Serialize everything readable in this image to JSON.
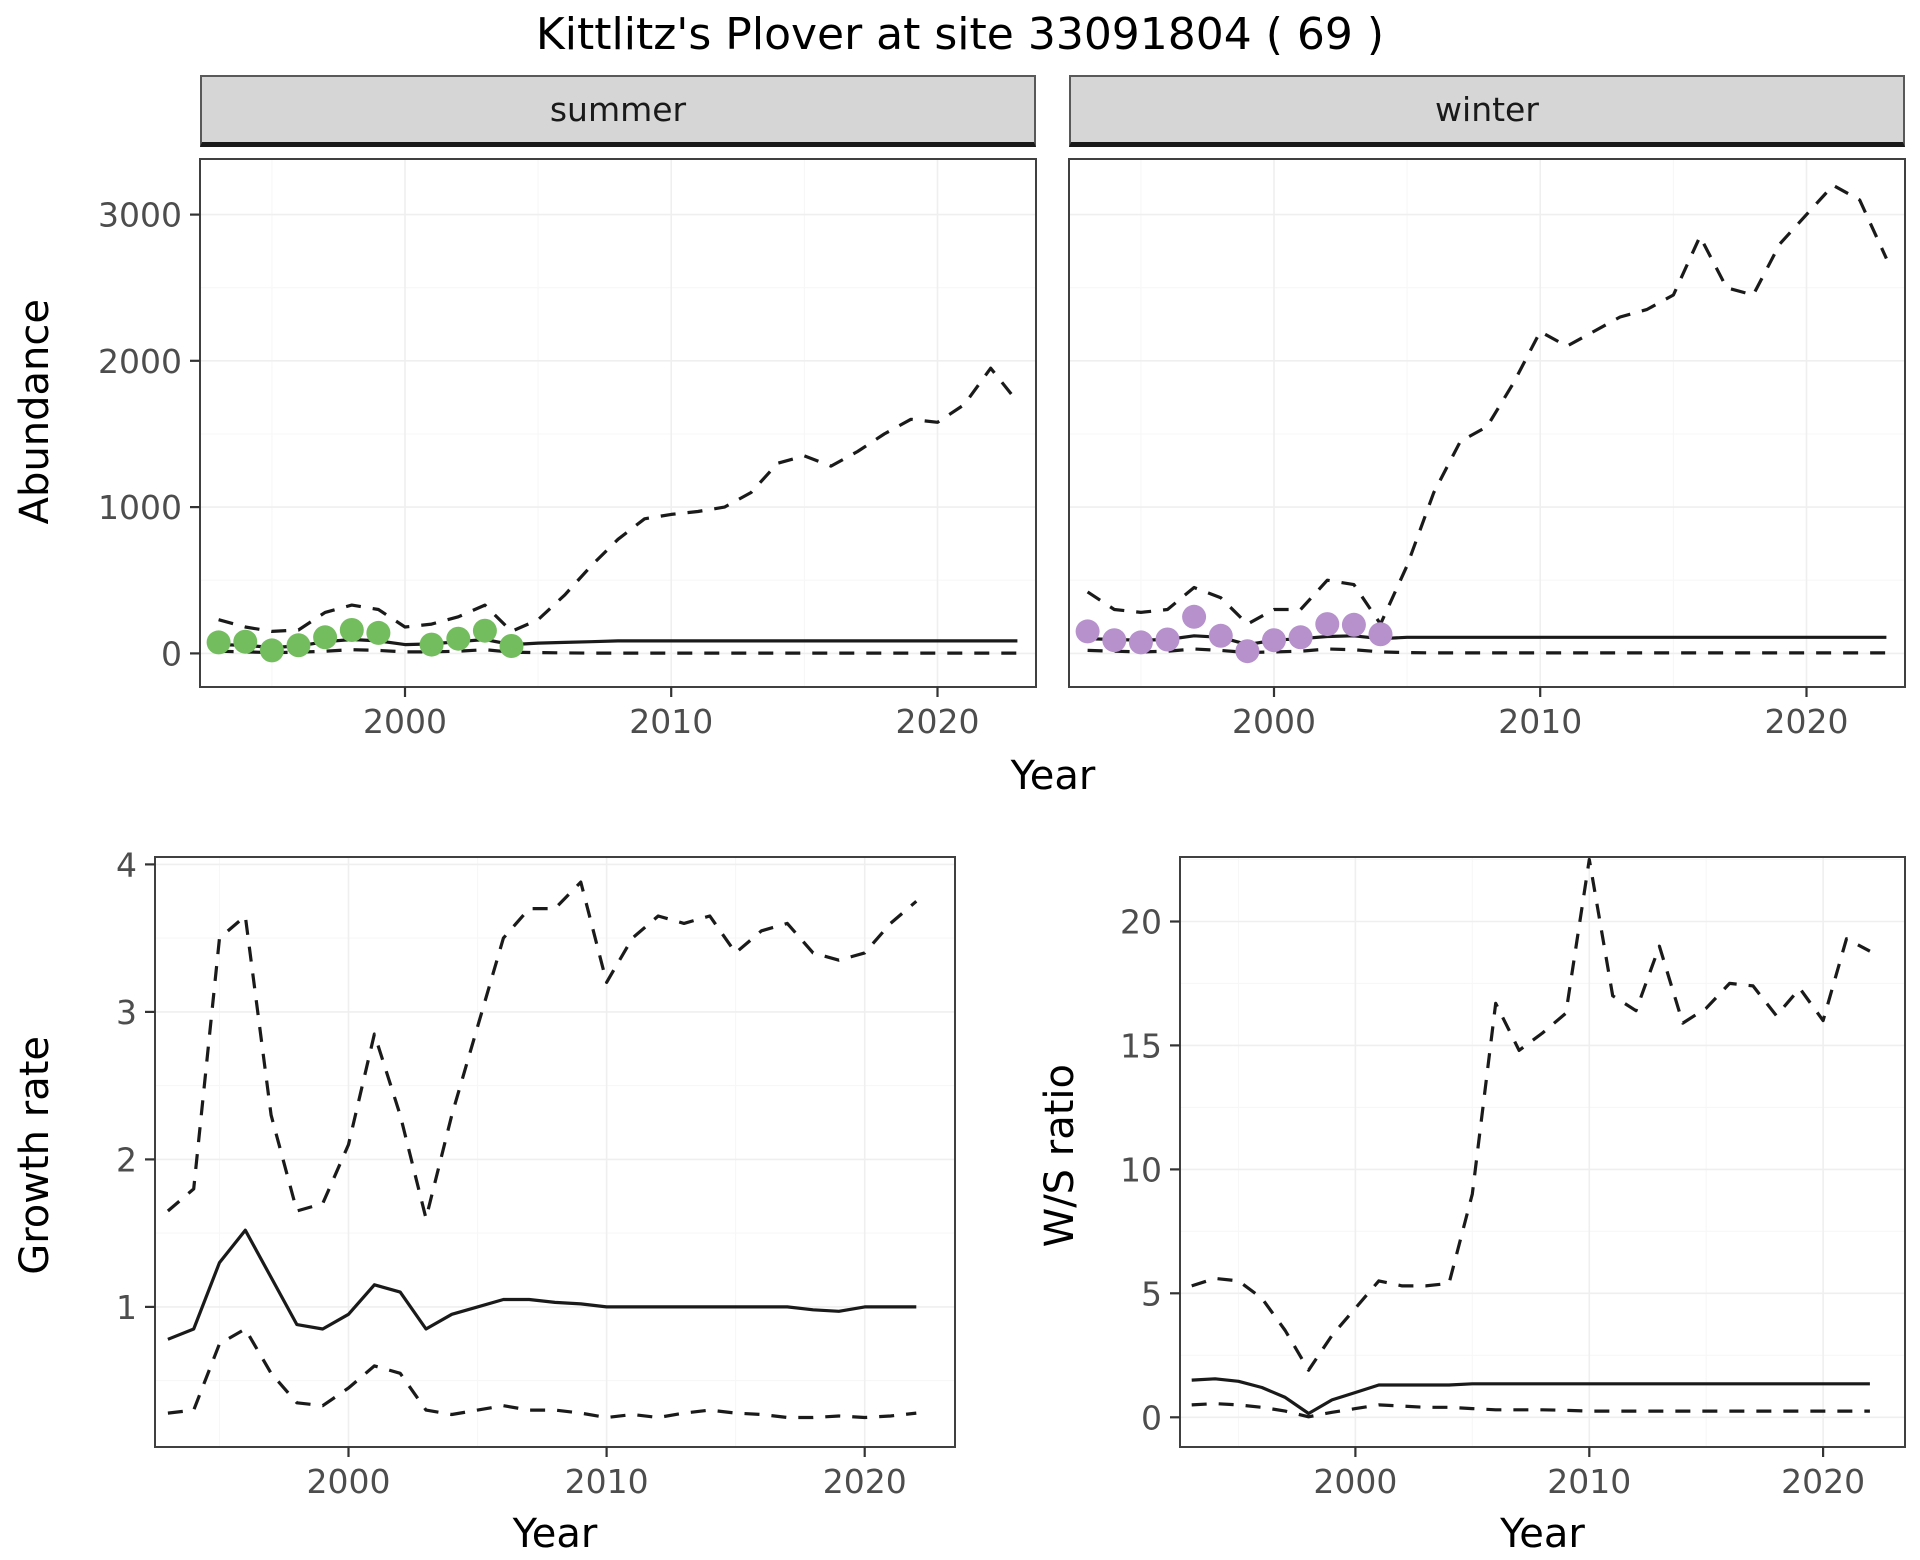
{
  "title": "Kittlitz's Plover at site 33091804 ( 69 )",
  "colors": {
    "summer_points": "#74bd5f",
    "winter_points": "#b691cc",
    "line": "#1a1a1a",
    "strip_bg": "#d6d6d6",
    "panel_border": "#404040",
    "grid_major": "#efefef",
    "grid_minor": "#f7f7f7",
    "tick_label": "#4d4d4d"
  },
  "axes": {
    "abundance_ylabel": "Abundance",
    "top_xlabel": "Year",
    "growth_ylabel": "Growth rate",
    "ws_ylabel": "W/S ratio"
  },
  "chart_data": [
    {
      "id": "abundance_summer",
      "type": "line",
      "facet_label": "summer",
      "xlabel": "Year",
      "ylabel": "Abundance",
      "xlim": [
        1992.3,
        2023.7
      ],
      "ylim": [
        -230,
        3380
      ],
      "xticks": [
        2000,
        2010,
        2020
      ],
      "yticks": [
        0,
        1000,
        2000,
        3000
      ],
      "x": [
        1993,
        1994,
        1995,
        1996,
        1997,
        1998,
        1999,
        2000,
        2001,
        2002,
        2003,
        2004,
        2005,
        2006,
        2007,
        2008,
        2009,
        2010,
        2011,
        2012,
        2013,
        2014,
        2015,
        2016,
        2017,
        2018,
        2019,
        2020,
        2021,
        2022,
        2023
      ],
      "series": [
        {
          "name": "upper_95ci",
          "style": "dashed",
          "y": [
            230,
            180,
            150,
            160,
            280,
            330,
            300,
            180,
            200,
            250,
            330,
            150,
            230,
            400,
            600,
            780,
            920,
            950,
            970,
            1000,
            1100,
            1300,
            1350,
            1280,
            1380,
            1500,
            1600,
            1580,
            1700,
            1950,
            1720
          ]
        },
        {
          "name": "median_fit",
          "style": "solid",
          "y": [
            60,
            55,
            40,
            50,
            80,
            95,
            85,
            60,
            65,
            80,
            95,
            60,
            70,
            75,
            80,
            85,
            85,
            85,
            85,
            85,
            85,
            85,
            85,
            85,
            85,
            85,
            85,
            85,
            85,
            85,
            85
          ]
        },
        {
          "name": "lower_95ci",
          "style": "dashed",
          "y": [
            15,
            10,
            5,
            8,
            15,
            25,
            20,
            10,
            10,
            15,
            25,
            8,
            5,
            3,
            2,
            2,
            2,
            2,
            2,
            2,
            2,
            2,
            2,
            2,
            2,
            2,
            2,
            2,
            2,
            2,
            2
          ]
        }
      ],
      "points": {
        "name": "observed_counts_summer",
        "color": "#74bd5f",
        "x": [
          1993,
          1994,
          1995,
          1996,
          1997,
          1998,
          1999,
          2001,
          2002,
          2003,
          2004
        ],
        "y": [
          75,
          80,
          20,
          55,
          110,
          160,
          140,
          60,
          100,
          155,
          50
        ]
      }
    },
    {
      "id": "abundance_winter",
      "type": "line",
      "facet_label": "winter",
      "xlabel": "Year",
      "ylabel": "Abundance",
      "xlim": [
        1992.3,
        2023.7
      ],
      "ylim": [
        -230,
        3380
      ],
      "xticks": [
        2000,
        2010,
        2020
      ],
      "yticks": [
        0,
        1000,
        2000,
        3000
      ],
      "x": [
        1993,
        1994,
        1995,
        1996,
        1997,
        1998,
        1999,
        2000,
        2001,
        2002,
        2003,
        2004,
        2005,
        2006,
        2007,
        2008,
        2009,
        2010,
        2011,
        2012,
        2013,
        2014,
        2015,
        2016,
        2017,
        2018,
        2019,
        2020,
        2021,
        2022,
        2023
      ],
      "series": [
        {
          "name": "upper_95ci",
          "style": "dashed",
          "y": [
            420,
            300,
            280,
            300,
            450,
            380,
            200,
            300,
            300,
            500,
            470,
            200,
            600,
            1100,
            1450,
            1550,
            1850,
            2200,
            2100,
            2200,
            2300,
            2350,
            2450,
            2850,
            2500,
            2450,
            2800,
            3000,
            3200,
            3100,
            2700
          ]
        },
        {
          "name": "median_fit",
          "style": "solid",
          "y": [
            100,
            95,
            90,
            95,
            120,
            110,
            60,
            90,
            100,
            115,
            120,
            100,
            110,
            110,
            110,
            110,
            110,
            110,
            110,
            110,
            110,
            110,
            110,
            110,
            110,
            110,
            110,
            110,
            110,
            110,
            110
          ]
        },
        {
          "name": "lower_95ci",
          "style": "dashed",
          "y": [
            20,
            15,
            10,
            15,
            30,
            20,
            5,
            10,
            15,
            30,
            25,
            10,
            5,
            3,
            3,
            3,
            3,
            3,
            3,
            3,
            3,
            3,
            3,
            3,
            3,
            3,
            3,
            3,
            3,
            3,
            3
          ]
        }
      ],
      "points": {
        "name": "observed_counts_winter",
        "color": "#b691cc",
        "x": [
          1993,
          1994,
          1995,
          1996,
          1997,
          1998,
          1999,
          2000,
          2001,
          2002,
          2003,
          2004
        ],
        "y": [
          150,
          90,
          75,
          95,
          250,
          120,
          15,
          90,
          110,
          200,
          195,
          130
        ]
      }
    },
    {
      "id": "growth_rate",
      "type": "line",
      "xlabel": "Year",
      "ylabel": "Growth rate",
      "xlim": [
        1992.5,
        2023.5
      ],
      "ylim": [
        0.05,
        4.05
      ],
      "xticks": [
        2000,
        2010,
        2020
      ],
      "yticks": [
        1,
        2,
        3,
        4
      ],
      "x": [
        1993,
        1994,
        1995,
        1996,
        1997,
        1998,
        1999,
        2000,
        2001,
        2002,
        2003,
        2004,
        2005,
        2006,
        2007,
        2008,
        2009,
        2010,
        2011,
        2012,
        2013,
        2014,
        2015,
        2016,
        2017,
        2018,
        2019,
        2020,
        2021,
        2022
      ],
      "series": [
        {
          "name": "upper_95ci",
          "style": "dashed",
          "y": [
            1.65,
            1.8,
            3.5,
            3.65,
            2.3,
            1.65,
            1.7,
            2.1,
            2.85,
            2.3,
            1.6,
            2.3,
            2.9,
            3.5,
            3.7,
            3.7,
            3.88,
            3.2,
            3.5,
            3.65,
            3.6,
            3.65,
            3.4,
            3.55,
            3.6,
            3.4,
            3.35,
            3.4,
            3.6,
            3.75
          ]
        },
        {
          "name": "median_fit",
          "style": "solid",
          "y": [
            0.78,
            0.85,
            1.3,
            1.52,
            1.2,
            0.88,
            0.85,
            0.95,
            1.15,
            1.1,
            0.85,
            0.95,
            1.0,
            1.05,
            1.05,
            1.03,
            1.02,
            1.0,
            1.0,
            1.0,
            1.0,
            1.0,
            1.0,
            1.0,
            1.0,
            0.98,
            0.97,
            1.0,
            1.0,
            1.0
          ]
        },
        {
          "name": "lower_95ci",
          "style": "dashed",
          "y": [
            0.28,
            0.3,
            0.75,
            0.85,
            0.55,
            0.35,
            0.33,
            0.45,
            0.6,
            0.55,
            0.3,
            0.27,
            0.3,
            0.33,
            0.3,
            0.3,
            0.28,
            0.25,
            0.27,
            0.25,
            0.28,
            0.3,
            0.28,
            0.27,
            0.25,
            0.25,
            0.26,
            0.25,
            0.26,
            0.28
          ]
        }
      ]
    },
    {
      "id": "ws_ratio",
      "type": "line",
      "xlabel": "Year",
      "ylabel": "W/S ratio",
      "xlim": [
        1992.5,
        2023.5
      ],
      "ylim": [
        -1.2,
        22.6
      ],
      "xticks": [
        2000,
        2010,
        2020
      ],
      "yticks": [
        0,
        5,
        10,
        15,
        20
      ],
      "x": [
        1993,
        1994,
        1995,
        1996,
        1997,
        1998,
        1999,
        2000,
        2001,
        2002,
        2003,
        2004,
        2005,
        2006,
        2007,
        2008,
        2009,
        2010,
        2011,
        2012,
        2013,
        2014,
        2015,
        2016,
        2017,
        2018,
        2019,
        2020,
        2021,
        2022
      ],
      "series": [
        {
          "name": "upper_95ci",
          "style": "dashed",
          "y": [
            5.3,
            5.6,
            5.5,
            4.8,
            3.5,
            1.9,
            3.3,
            4.4,
            5.5,
            5.3,
            5.3,
            5.4,
            9.0,
            16.7,
            14.8,
            15.5,
            16.3,
            22.5,
            17.0,
            16.4,
            19.0,
            15.9,
            16.5,
            17.5,
            17.4,
            16.2,
            17.3,
            16.0,
            19.3,
            18.8
          ]
        },
        {
          "name": "median_fit",
          "style": "solid",
          "y": [
            1.5,
            1.55,
            1.45,
            1.2,
            0.8,
            0.15,
            0.7,
            1.0,
            1.3,
            1.3,
            1.3,
            1.3,
            1.35,
            1.35,
            1.35,
            1.35,
            1.35,
            1.35,
            1.35,
            1.35,
            1.35,
            1.35,
            1.35,
            1.35,
            1.35,
            1.35,
            1.35,
            1.35,
            1.35,
            1.35
          ]
        },
        {
          "name": "lower_95ci",
          "style": "dashed",
          "y": [
            0.5,
            0.55,
            0.5,
            0.4,
            0.25,
            0.02,
            0.2,
            0.35,
            0.5,
            0.45,
            0.4,
            0.4,
            0.35,
            0.3,
            0.3,
            0.3,
            0.28,
            0.25,
            0.25,
            0.25,
            0.25,
            0.25,
            0.25,
            0.25,
            0.25,
            0.25,
            0.25,
            0.25,
            0.25,
            0.25
          ]
        }
      ]
    }
  ]
}
